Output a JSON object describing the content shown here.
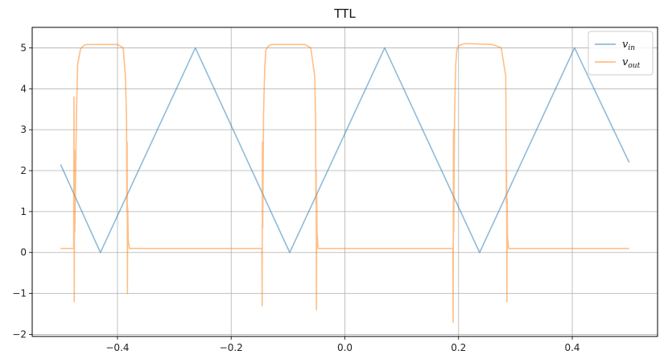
{
  "chart_data": {
    "type": "line",
    "title": "TTL",
    "xlabel": "",
    "ylabel": "",
    "xlim": [
      -0.55,
      0.55
    ],
    "ylim": [
      -2.05,
      5.5
    ],
    "xticks": [
      -0.4,
      -0.2,
      0.0,
      0.2,
      0.4
    ],
    "xtick_labels": [
      "−0.4",
      "−0.2",
      "0.0",
      "0.2",
      "0.4"
    ],
    "yticks": [
      -2,
      -1,
      0,
      1,
      2,
      3,
      4,
      5
    ],
    "ytick_labels": [
      "−2",
      "−1",
      "0",
      "1",
      "2",
      "3",
      "4",
      "5"
    ],
    "grid": true,
    "legend_position": "top-right",
    "series": [
      {
        "name": "v_in",
        "legend_main": "v",
        "legend_sub": "in",
        "color": "#1f77b4",
        "opacity": 0.5,
        "x": [
          -0.5,
          -0.43,
          -0.263,
          -0.097,
          0.07,
          0.237,
          0.404,
          0.5
        ],
        "y": [
          2.15,
          0.0,
          5.0,
          0.0,
          5.0,
          0.0,
          5.0,
          2.2
        ]
      },
      {
        "name": "v_out",
        "legend_main": "v",
        "legend_sub": "out",
        "color": "#ff7f0e",
        "opacity": 0.5,
        "x": [
          -0.5,
          -0.477,
          -0.4765,
          -0.476,
          -0.4755,
          -0.475,
          -0.474,
          -0.472,
          -0.47,
          -0.465,
          -0.46,
          -0.455,
          -0.45,
          -0.4,
          -0.39,
          -0.386,
          -0.384,
          -0.3835,
          -0.383,
          -0.3825,
          -0.382,
          -0.381,
          -0.379,
          -0.3,
          -0.2,
          -0.146,
          -0.1455,
          -0.145,
          -0.1445,
          -0.144,
          -0.143,
          -0.141,
          -0.139,
          -0.134,
          -0.129,
          -0.124,
          -0.12,
          -0.07,
          -0.06,
          -0.053,
          -0.0515,
          -0.051,
          -0.0505,
          -0.05,
          -0.0495,
          -0.049,
          -0.047,
          0.0,
          0.1,
          0.19,
          0.1905,
          0.191,
          0.1915,
          0.192,
          0.193,
          0.195,
          0.197,
          0.2,
          0.205,
          0.21,
          0.215,
          0.22,
          0.26,
          0.275,
          0.283,
          0.2835,
          0.284,
          0.2845,
          0.285,
          0.2855,
          0.286,
          0.288,
          0.35,
          0.45,
          0.5
        ],
        "y": [
          0.1,
          0.1,
          3.8,
          -1.2,
          2.5,
          0.5,
          1.5,
          3.5,
          4.6,
          4.97,
          5.05,
          5.08,
          5.08,
          5.08,
          5.0,
          4.3,
          3.2,
          1.0,
          2.7,
          -1.0,
          1.1,
          0.3,
          0.1,
          0.1,
          0.1,
          0.1,
          -1.3,
          2.7,
          0.6,
          1.6,
          3.4,
          4.5,
          4.95,
          5.05,
          5.08,
          5.08,
          5.08,
          5.08,
          5.0,
          4.3,
          3.2,
          1.2,
          2.0,
          -1.4,
          1.4,
          0.5,
          0.1,
          0.1,
          0.1,
          0.1,
          -1.7,
          3.0,
          0.5,
          1.7,
          3.4,
          4.6,
          4.95,
          5.05,
          5.08,
          5.1,
          5.1,
          5.1,
          5.08,
          5.0,
          4.3,
          3.0,
          1.2,
          2.0,
          -1.2,
          1.3,
          0.4,
          0.1,
          0.1,
          0.1,
          0.1
        ]
      }
    ]
  }
}
